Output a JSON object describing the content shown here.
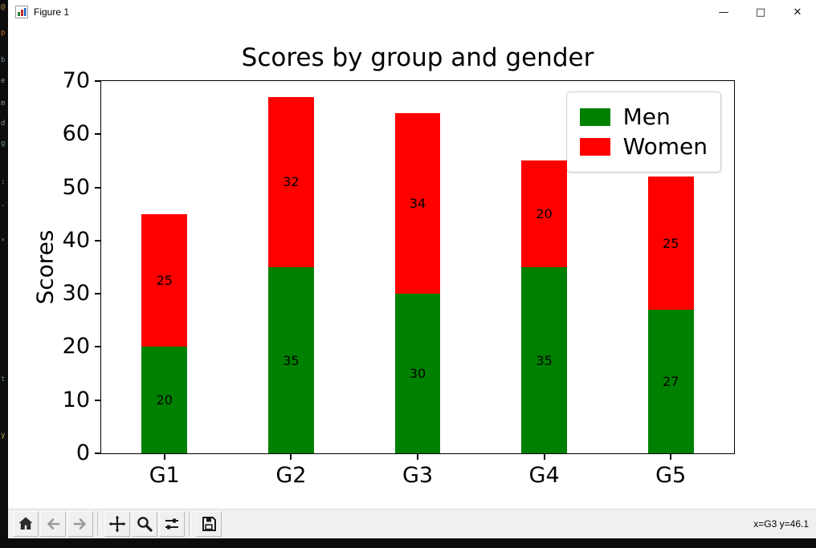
{
  "window": {
    "title": "Figure 1",
    "controls": {
      "minimize": "—",
      "maximize": "□",
      "close": "✕"
    }
  },
  "chart_data": {
    "type": "bar",
    "stacked": true,
    "title": "Scores by group and gender",
    "xlabel": "",
    "ylabel": "Scores",
    "categories": [
      "G1",
      "G2",
      "G3",
      "G4",
      "G5"
    ],
    "series": [
      {
        "name": "Men",
        "color": "#008000",
        "values": [
          20,
          35,
          30,
          35,
          27
        ]
      },
      {
        "name": "Women",
        "color": "#ff0000",
        "values": [
          25,
          32,
          34,
          20,
          25
        ]
      }
    ],
    "totals": [
      45,
      67,
      64,
      55,
      52
    ],
    "ylim": [
      0,
      70
    ],
    "yticks": [
      0,
      10,
      20,
      30,
      40,
      50,
      60,
      70
    ],
    "bar_labels": true,
    "legend_position": "upper right",
    "grid": false
  },
  "toolbar": {
    "buttons": [
      "home",
      "back",
      "forward",
      "pan",
      "zoom",
      "configure-subplots",
      "save"
    ],
    "status": "x=G3 y=46.1"
  },
  "edge_glyphs": [
    {
      "char": "@",
      "color": "#b58f4a"
    },
    {
      "char": "p",
      "color": "#c87a3a"
    },
    {
      "char": "b",
      "color": "#6f8a9a"
    },
    {
      "char": "e",
      "color": "#9aa0a6"
    },
    {
      "char": "m",
      "color": "#8a8f94"
    },
    {
      "char": "d",
      "color": "#8a8f94"
    },
    {
      "char": "g",
      "color": "#6f9a6f"
    },
    {
      "char": ":",
      "color": "#9aa0a6"
    },
    {
      "char": ".",
      "color": "#9aa0a6"
    },
    {
      "char": "*",
      "color": "#8a6f9a"
    },
    {
      "char": "t",
      "color": "#6f8a9a"
    },
    {
      "char": "y",
      "color": "#b5a84a"
    }
  ]
}
